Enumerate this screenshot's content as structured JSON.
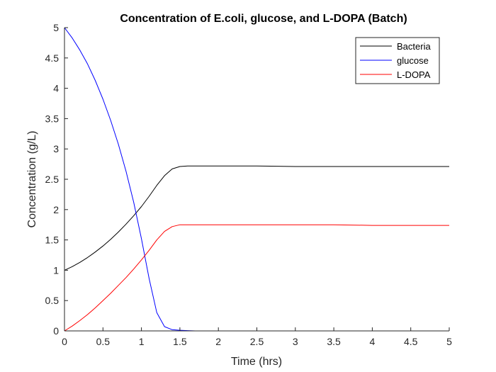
{
  "chart_data": {
    "type": "line",
    "title": "Concentration of E.coli, glucose, and L-DOPA (Batch)",
    "xlabel": "Time (hrs)",
    "ylabel": "Concentration (g/L)",
    "xlim": [
      0,
      5
    ],
    "ylim": [
      0,
      5
    ],
    "x_ticks": [
      "0",
      "0.5",
      "1",
      "1.5",
      "2",
      "2.5",
      "3",
      "3.5",
      "4",
      "4.5",
      "5"
    ],
    "y_ticks": [
      "0",
      "0.5",
      "1",
      "1.5",
      "2",
      "2.5",
      "3",
      "3.5",
      "4",
      "4.5",
      "5"
    ],
    "grid": false,
    "legend_position": "top-right",
    "x": [
      0,
      0.1,
      0.2,
      0.3,
      0.4,
      0.5,
      0.6,
      0.7,
      0.8,
      0.9,
      1.0,
      1.1,
      1.2,
      1.3,
      1.4,
      1.5,
      1.6,
      1.7,
      1.8,
      2.0,
      2.5,
      3.0,
      3.5,
      4.0,
      4.5,
      5.0
    ],
    "series": [
      {
        "name": "Bacteria",
        "color": "#000000",
        "values": [
          1.0,
          1.06,
          1.13,
          1.21,
          1.3,
          1.4,
          1.51,
          1.63,
          1.76,
          1.9,
          2.05,
          2.22,
          2.4,
          2.56,
          2.67,
          2.71,
          2.72,
          2.72,
          2.72,
          2.72,
          2.72,
          2.71,
          2.71,
          2.71,
          2.71,
          2.71
        ]
      },
      {
        "name": "glucose",
        "color": "#0000ff",
        "values": [
          5.0,
          4.83,
          4.63,
          4.4,
          4.13,
          3.82,
          3.47,
          3.08,
          2.63,
          2.12,
          1.52,
          0.86,
          0.3,
          0.07,
          0.02,
          0.01,
          0.005,
          0.0,
          0.0,
          0.0,
          0.0,
          0.0,
          0.0,
          0.0,
          0.0,
          0.0
        ]
      },
      {
        "name": "L-DOPA",
        "color": "#ff0000",
        "values": [
          0.0,
          0.08,
          0.17,
          0.27,
          0.38,
          0.5,
          0.62,
          0.75,
          0.88,
          1.02,
          1.17,
          1.33,
          1.5,
          1.64,
          1.72,
          1.75,
          1.75,
          1.75,
          1.75,
          1.75,
          1.75,
          1.75,
          1.75,
          1.74,
          1.74,
          1.74
        ]
      }
    ]
  }
}
